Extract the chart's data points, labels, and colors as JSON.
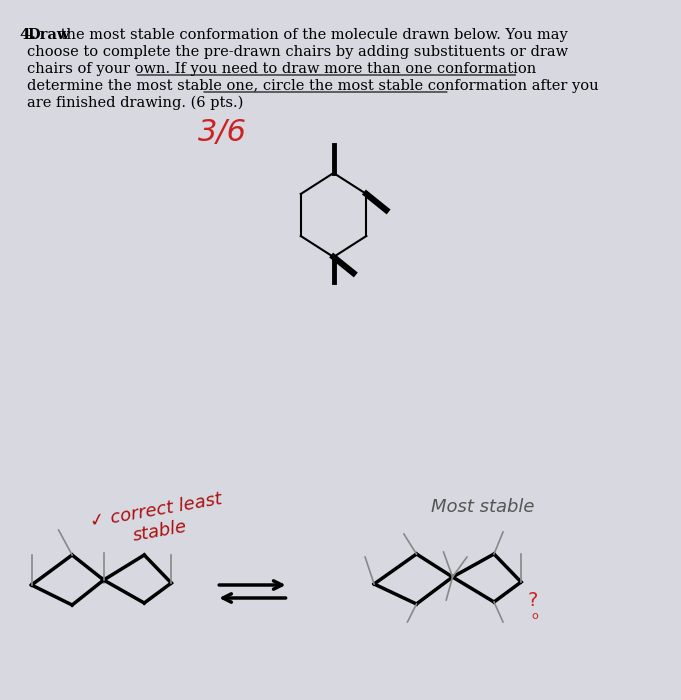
{
  "bg_color": "#d8d8e0",
  "title_text": "4.",
  "question_bold": "Draw",
  "question_text": " the most stable conformation of the molecule drawn below. You may\nchoose to complete the pre-drawn chairs by adding substituents or draw\nchairs of your own. ",
  "underline1": "If you need to draw more than one conformation",
  "mid_text": " to\ndetermine the most stable one, ",
  "underline2": "circle the most stable conformation",
  "end_text": " after you\nare finished drawing. (6 pts.)",
  "score": "3/6",
  "score_color": "#cc2222",
  "annotation1": "✓ correct least\nstable",
  "annotation1_color": "#aa1111",
  "annotation2": "Most stable",
  "annotation2_color": "#555555",
  "question_mark": "?",
  "qmark_color": "#cc2222"
}
